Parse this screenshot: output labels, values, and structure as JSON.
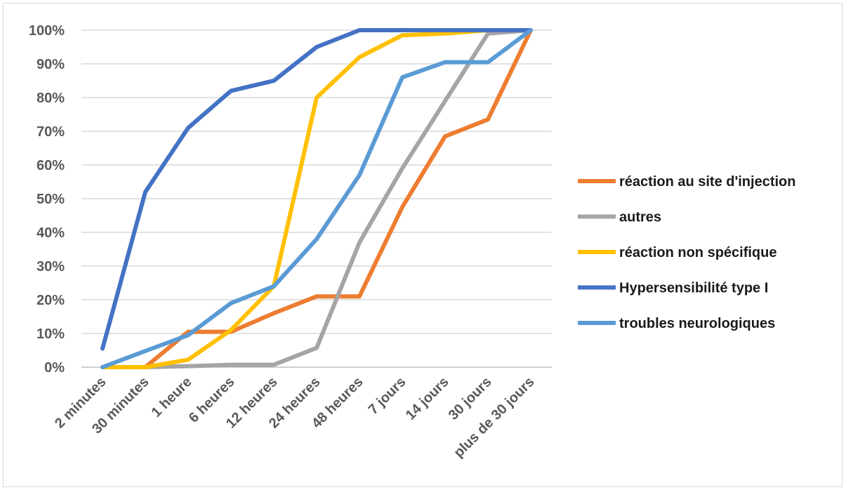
{
  "chart_data": {
    "type": "line",
    "categories": [
      "2 minutes",
      "30 minutes",
      "1 heure",
      "6 heures",
      "12 heures",
      "24 heures",
      "48 heures",
      "7 jours",
      "14 jours",
      "30 jours",
      "plus de 30 jours"
    ],
    "y_ticks": [
      "0%",
      "10%",
      "20%",
      "30%",
      "40%",
      "50%",
      "60%",
      "70%",
      "80%",
      "90%",
      "100%"
    ],
    "ylim": [
      0,
      100
    ],
    "grid": true,
    "legend_position": "right",
    "series": [
      {
        "name": "réaction au site d'injection",
        "color": "#ED7D31",
        "values": [
          0,
          0,
          10.5,
          10.5,
          16,
          21,
          21,
          47.5,
          68.5,
          73.5,
          100
        ]
      },
      {
        "name": "autres",
        "color": "#A5A5A5",
        "values": [
          0,
          0,
          0.3,
          0.7,
          0.7,
          5.7,
          37,
          59,
          79,
          99,
          100
        ]
      },
      {
        "name": "réaction non spécifique",
        "color": "#FFC000",
        "values": [
          0,
          0,
          2.2,
          11,
          24,
          80,
          92,
          98.5,
          99,
          100,
          100
        ]
      },
      {
        "name": "Hypersensibilité type I",
        "color": "#4472C4",
        "values": [
          5.5,
          52,
          71,
          82,
          85,
          95,
          100,
          100,
          100,
          100,
          100
        ]
      },
      {
        "name": "troubles neurologiques",
        "color": "#5B9BD5",
        "values": [
          0,
          4.8,
          9.5,
          19,
          24,
          38,
          57,
          86,
          90.5,
          90.5,
          100
        ]
      }
    ]
  }
}
